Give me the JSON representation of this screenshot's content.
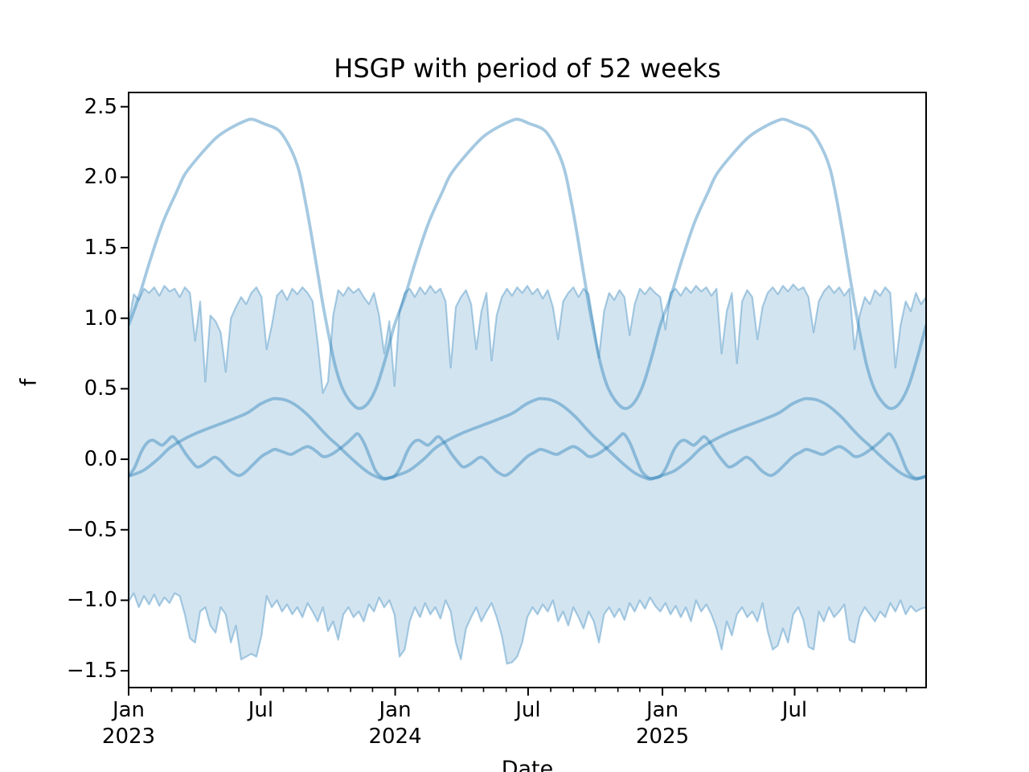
{
  "title": "HSGP with period of 52 weeks",
  "axis_labels": {
    "x": "Date",
    "y": "f"
  },
  "x_axis": {
    "range_days": [
      0,
      1092
    ],
    "major_ticks": [
      {
        "day": 0,
        "label": "Jan\n2023"
      },
      {
        "day": 181,
        "label": "Jul"
      },
      {
        "day": 365,
        "label": "Jan\n2024"
      },
      {
        "day": 547,
        "label": "Jul"
      },
      {
        "day": 731,
        "label": "Jan\n2025"
      },
      {
        "day": 912,
        "label": "Jul"
      }
    ],
    "minor_tick_days": [
      31,
      59,
      90,
      120,
      151,
      212,
      243,
      273,
      304,
      334,
      396,
      425,
      456,
      486,
      517,
      578,
      609,
      639,
      670,
      700,
      762,
      790,
      821,
      851,
      882,
      943,
      974,
      1004,
      1035,
      1065
    ]
  },
  "y_axis": {
    "limits": [
      -1.619,
      2.601
    ],
    "ticks": [
      {
        "value": -1.5,
        "label": "−1.5"
      },
      {
        "value": -1.0,
        "label": "−1.0"
      },
      {
        "value": -0.5,
        "label": "−0.5"
      },
      {
        "value": 0.0,
        "label": "0.0"
      },
      {
        "value": 0.5,
        "label": "0.5"
      },
      {
        "value": 1.0,
        "label": "1.0"
      },
      {
        "value": 1.5,
        "label": "1.5"
      },
      {
        "value": 2.0,
        "label": "2.0"
      },
      {
        "value": 2.5,
        "label": "2.5"
      }
    ]
  },
  "chart_data": {
    "type": "line",
    "title": "HSGP with period of 52 weeks",
    "xlabel": "Date",
    "ylabel": "f",
    "period_weeks": 52,
    "x_axis_span_weeks": 156,
    "ylim": [
      -1.619,
      2.601
    ],
    "grid": false,
    "legend": false,
    "colors": {
      "sample_line": "rgba(31,119,180,0.40)",
      "band_fill": "rgba(31,119,180,0.20)",
      "band_edge": "rgba(31,119,180,0.35)",
      "spine": "#000000"
    },
    "series": [
      {
        "name": "hsgp-sample-1",
        "period_days": 364,
        "periods": 3,
        "points_per_period": [
          [
            0,
            0.95
          ],
          [
            14,
            1.15
          ],
          [
            30,
            1.42
          ],
          [
            47,
            1.68
          ],
          [
            66,
            1.9
          ],
          [
            77,
            2.02
          ],
          [
            95,
            2.14
          ],
          [
            120,
            2.28
          ],
          [
            140,
            2.35
          ],
          [
            160,
            2.4
          ],
          [
            170,
            2.41
          ],
          [
            185,
            2.38
          ],
          [
            206,
            2.33
          ],
          [
            222,
            2.2
          ],
          [
            233,
            2.05
          ],
          [
            242,
            1.83
          ],
          [
            250,
            1.6
          ],
          [
            258,
            1.35
          ],
          [
            266,
            1.1
          ],
          [
            274,
            0.88
          ],
          [
            283,
            0.66
          ],
          [
            293,
            0.5
          ],
          [
            305,
            0.4
          ],
          [
            316,
            0.36
          ],
          [
            328,
            0.4
          ],
          [
            340,
            0.52
          ],
          [
            352,
            0.72
          ],
          [
            364,
            0.95
          ]
        ]
      },
      {
        "name": "hsgp-sample-2",
        "period_days": 364,
        "periods": 3,
        "points_per_period": [
          [
            0,
            -0.12
          ],
          [
            20,
            -0.08
          ],
          [
            40,
            0.0
          ],
          [
            56,
            0.08
          ],
          [
            75,
            0.14
          ],
          [
            95,
            0.19
          ],
          [
            120,
            0.24
          ],
          [
            145,
            0.29
          ],
          [
            163,
            0.33
          ],
          [
            180,
            0.39
          ],
          [
            195,
            0.425
          ],
          [
            201,
            0.43
          ],
          [
            215,
            0.42
          ],
          [
            230,
            0.38
          ],
          [
            248,
            0.3
          ],
          [
            262,
            0.22
          ],
          [
            275,
            0.15
          ],
          [
            286,
            0.1
          ],
          [
            300,
            0.03
          ],
          [
            315,
            -0.04
          ],
          [
            330,
            -0.1
          ],
          [
            345,
            -0.135
          ],
          [
            352,
            -0.14
          ],
          [
            364,
            -0.12
          ]
        ]
      },
      {
        "name": "hsgp-sample-3",
        "period_days": 364,
        "periods": 3,
        "points_per_period": [
          [
            0,
            -0.12
          ],
          [
            8,
            -0.06
          ],
          [
            18,
            0.06
          ],
          [
            26,
            0.12
          ],
          [
            33,
            0.135
          ],
          [
            40,
            0.115
          ],
          [
            46,
            0.1
          ],
          [
            53,
            0.13
          ],
          [
            60,
            0.16
          ],
          [
            68,
            0.12
          ],
          [
            78,
            0.04
          ],
          [
            87,
            -0.02
          ],
          [
            94,
            -0.055
          ],
          [
            102,
            -0.04
          ],
          [
            110,
            -0.01
          ],
          [
            118,
            0.015
          ],
          [
            126,
            -0.01
          ],
          [
            133,
            -0.05
          ],
          [
            141,
            -0.09
          ],
          [
            151,
            -0.115
          ],
          [
            160,
            -0.09
          ],
          [
            170,
            -0.04
          ],
          [
            182,
            0.02
          ],
          [
            192,
            0.05
          ],
          [
            200,
            0.07
          ],
          [
            210,
            0.055
          ],
          [
            222,
            0.035
          ],
          [
            232,
            0.06
          ],
          [
            245,
            0.09
          ],
          [
            256,
            0.06
          ],
          [
            266,
            0.02
          ],
          [
            276,
            0.03
          ],
          [
            288,
            0.07
          ],
          [
            300,
            0.12
          ],
          [
            308,
            0.16
          ],
          [
            314,
            0.18
          ],
          [
            322,
            0.12
          ],
          [
            330,
            0.02
          ],
          [
            338,
            -0.08
          ],
          [
            346,
            -0.125
          ],
          [
            352,
            -0.135
          ],
          [
            358,
            -0.13
          ],
          [
            364,
            -0.12
          ]
        ]
      }
    ],
    "band": {
      "name": "hdi-band",
      "step_days": 7,
      "upper": [
        0.97,
        1.17,
        1.13,
        1.21,
        1.18,
        1.22,
        1.16,
        1.23,
        1.19,
        1.21,
        1.15,
        1.22,
        1.18,
        0.84,
        1.12,
        0.55,
        1.02,
        0.98,
        0.9,
        0.62,
        1.0,
        1.08,
        1.15,
        1.1,
        1.18,
        1.22,
        1.15,
        0.78,
        0.95,
        1.16,
        1.2,
        1.13,
        1.21,
        1.17,
        1.22,
        1.18,
        1.12,
        0.82,
        0.47,
        0.55,
        1.02,
        1.2,
        1.16,
        1.22,
        1.18,
        1.21,
        1.15,
        1.1,
        1.18,
        1.02,
        0.75,
        0.98,
        0.52,
        1.05,
        1.18,
        1.21,
        1.15,
        1.22,
        1.17,
        1.23,
        1.18,
        1.21,
        1.12,
        0.65,
        1.08,
        1.15,
        1.2,
        1.1,
        0.78,
        1.05,
        1.18,
        0.7,
        1.02,
        1.15,
        1.21,
        1.16,
        1.22,
        1.18,
        1.23,
        1.17,
        1.21,
        1.14,
        1.2,
        1.08,
        0.85,
        1.12,
        1.18,
        1.22,
        1.15,
        1.21,
        1.17,
        0.95,
        0.72,
        1.05,
        1.18,
        1.13,
        1.2,
        1.15,
        0.88,
        1.1,
        1.21,
        1.17,
        1.22,
        1.18,
        1.15,
        0.92,
        1.18,
        1.21,
        1.16,
        1.22,
        1.18,
        1.23,
        1.19,
        1.22,
        1.16,
        1.21,
        0.75,
        1.05,
        1.18,
        0.68,
        1.12,
        1.2,
        1.15,
        0.85,
        1.08,
        1.18,
        1.22,
        1.17,
        1.23,
        1.19,
        1.24,
        1.2,
        1.22,
        1.15,
        0.9,
        1.12,
        1.19,
        1.23,
        1.18,
        1.22,
        1.16,
        1.21,
        0.78,
        1.02,
        1.15,
        1.1,
        1.2,
        1.16,
        1.22,
        1.18,
        0.65,
        0.95,
        1.12,
        1.05,
        1.18,
        1.1,
        1.15
      ],
      "lower": [
        -1.01,
        -0.95,
        -1.05,
        -0.97,
        -1.03,
        -0.96,
        -1.04,
        -0.98,
        -1.02,
        -0.95,
        -0.97,
        -1.1,
        -1.27,
        -1.3,
        -1.08,
        -1.05,
        -1.18,
        -1.23,
        -1.05,
        -1.1,
        -1.3,
        -1.18,
        -1.42,
        -1.4,
        -1.38,
        -1.4,
        -1.25,
        -0.97,
        -1.05,
        -1.0,
        -1.08,
        -1.03,
        -1.1,
        -1.05,
        -1.12,
        -1.02,
        -1.08,
        -1.15,
        -1.05,
        -1.22,
        -1.15,
        -1.28,
        -1.1,
        -1.05,
        -1.12,
        -1.08,
        -1.15,
        -1.03,
        -1.08,
        -0.98,
        -1.05,
        -1.0,
        -1.1,
        -1.4,
        -1.35,
        -1.15,
        -1.05,
        -1.12,
        -1.02,
        -1.1,
        -1.05,
        -1.13,
        -1.0,
        -1.08,
        -1.3,
        -1.42,
        -1.2,
        -1.12,
        -1.05,
        -1.15,
        -1.08,
        -1.02,
        -1.12,
        -1.25,
        -1.45,
        -1.44,
        -1.4,
        -1.3,
        -1.12,
        -1.05,
        -1.1,
        -1.03,
        -1.08,
        -1.0,
        -1.15,
        -1.08,
        -1.18,
        -1.05,
        -1.12,
        -1.2,
        -1.08,
        -1.15,
        -1.3,
        -1.1,
        -1.05,
        -1.12,
        -1.06,
        -1.14,
        -1.02,
        -1.08,
        -1.0,
        -1.06,
        -0.98,
        -1.04,
        -1.08,
        -1.02,
        -1.1,
        -1.04,
        -1.12,
        -1.05,
        -1.15,
        -1.0,
        -1.08,
        -1.03,
        -1.1,
        -1.2,
        -1.35,
        -1.15,
        -1.25,
        -1.1,
        -1.05,
        -1.12,
        -1.08,
        -1.15,
        -1.02,
        -1.22,
        -1.35,
        -1.32,
        -1.2,
        -1.3,
        -1.1,
        -1.05,
        -1.14,
        -1.33,
        -1.35,
        -1.08,
        -1.15,
        -1.05,
        -1.12,
        -1.08,
        -1.03,
        -1.28,
        -1.3,
        -1.12,
        -1.05,
        -1.1,
        -1.15,
        -1.08,
        -1.12,
        -1.02,
        -1.08,
        -1.0,
        -1.1,
        -1.04,
        -1.08,
        -1.06,
        -1.05
      ]
    }
  }
}
